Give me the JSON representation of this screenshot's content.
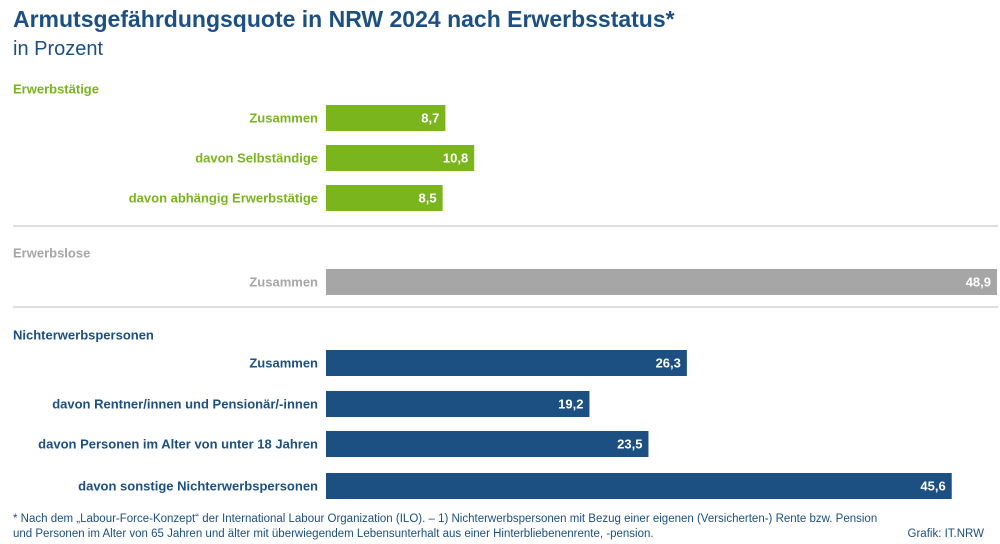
{
  "header": {
    "title": "Armutsgefährdungsquote in NRW 2024 nach Erwerbsstatus*",
    "subtitle": "in Prozent"
  },
  "colors": {
    "erwerbstaetige": "#7ab51d",
    "erwerbslose": "#a6a6a6",
    "nichterwerbspersonen": "#1c4f82",
    "divider": "#d4d4d4",
    "text_blue": "#1c4f82"
  },
  "chart_data": {
    "type": "bar",
    "orientation": "horizontal",
    "xlim": [
      0,
      48.9
    ],
    "grid": false,
    "groups": [
      {
        "name": "Erwerbstätige",
        "color": "#7ab51d",
        "categories": [
          "Zusammen",
          "davon Selbständige",
          "davon abhängig Erwerbstätige"
        ],
        "values": [
          8.7,
          10.8,
          8.5
        ],
        "labels": [
          "8,7",
          "10,8",
          "8,5"
        ]
      },
      {
        "name": "Erwerbslose",
        "color": "#a6a6a6",
        "categories": [
          "Zusammen"
        ],
        "values": [
          48.9
        ],
        "labels": [
          "48,9"
        ]
      },
      {
        "name": "Nichterwerbspersonen",
        "color": "#1c4f82",
        "categories": [
          "Zusammen",
          "davon Rentner/innen und Pensionär/-innen",
          "davon Personen im Alter von unter 18 Jahren",
          "davon sonstige Nichterwerbspersonen"
        ],
        "values": [
          26.3,
          19.2,
          23.5,
          45.6
        ],
        "labels": [
          "26,3",
          "19,2",
          "23,5",
          "45,6"
        ]
      }
    ]
  },
  "footer": {
    "footnote": "* Nach dem „Labour-Force-Konzept“ der International Labour Organization (ILO). – 1) Nichterwerbspersonen mit Bezug einer eigenen (Versicherten-) Rente bzw. Pension und Personen im Alter von 65 Jahren und älter mit überwiegendem Lebensunterhalt aus einer Hinterbliebenenrente, -pension.",
    "credit": "Grafik: IT.NRW"
  }
}
